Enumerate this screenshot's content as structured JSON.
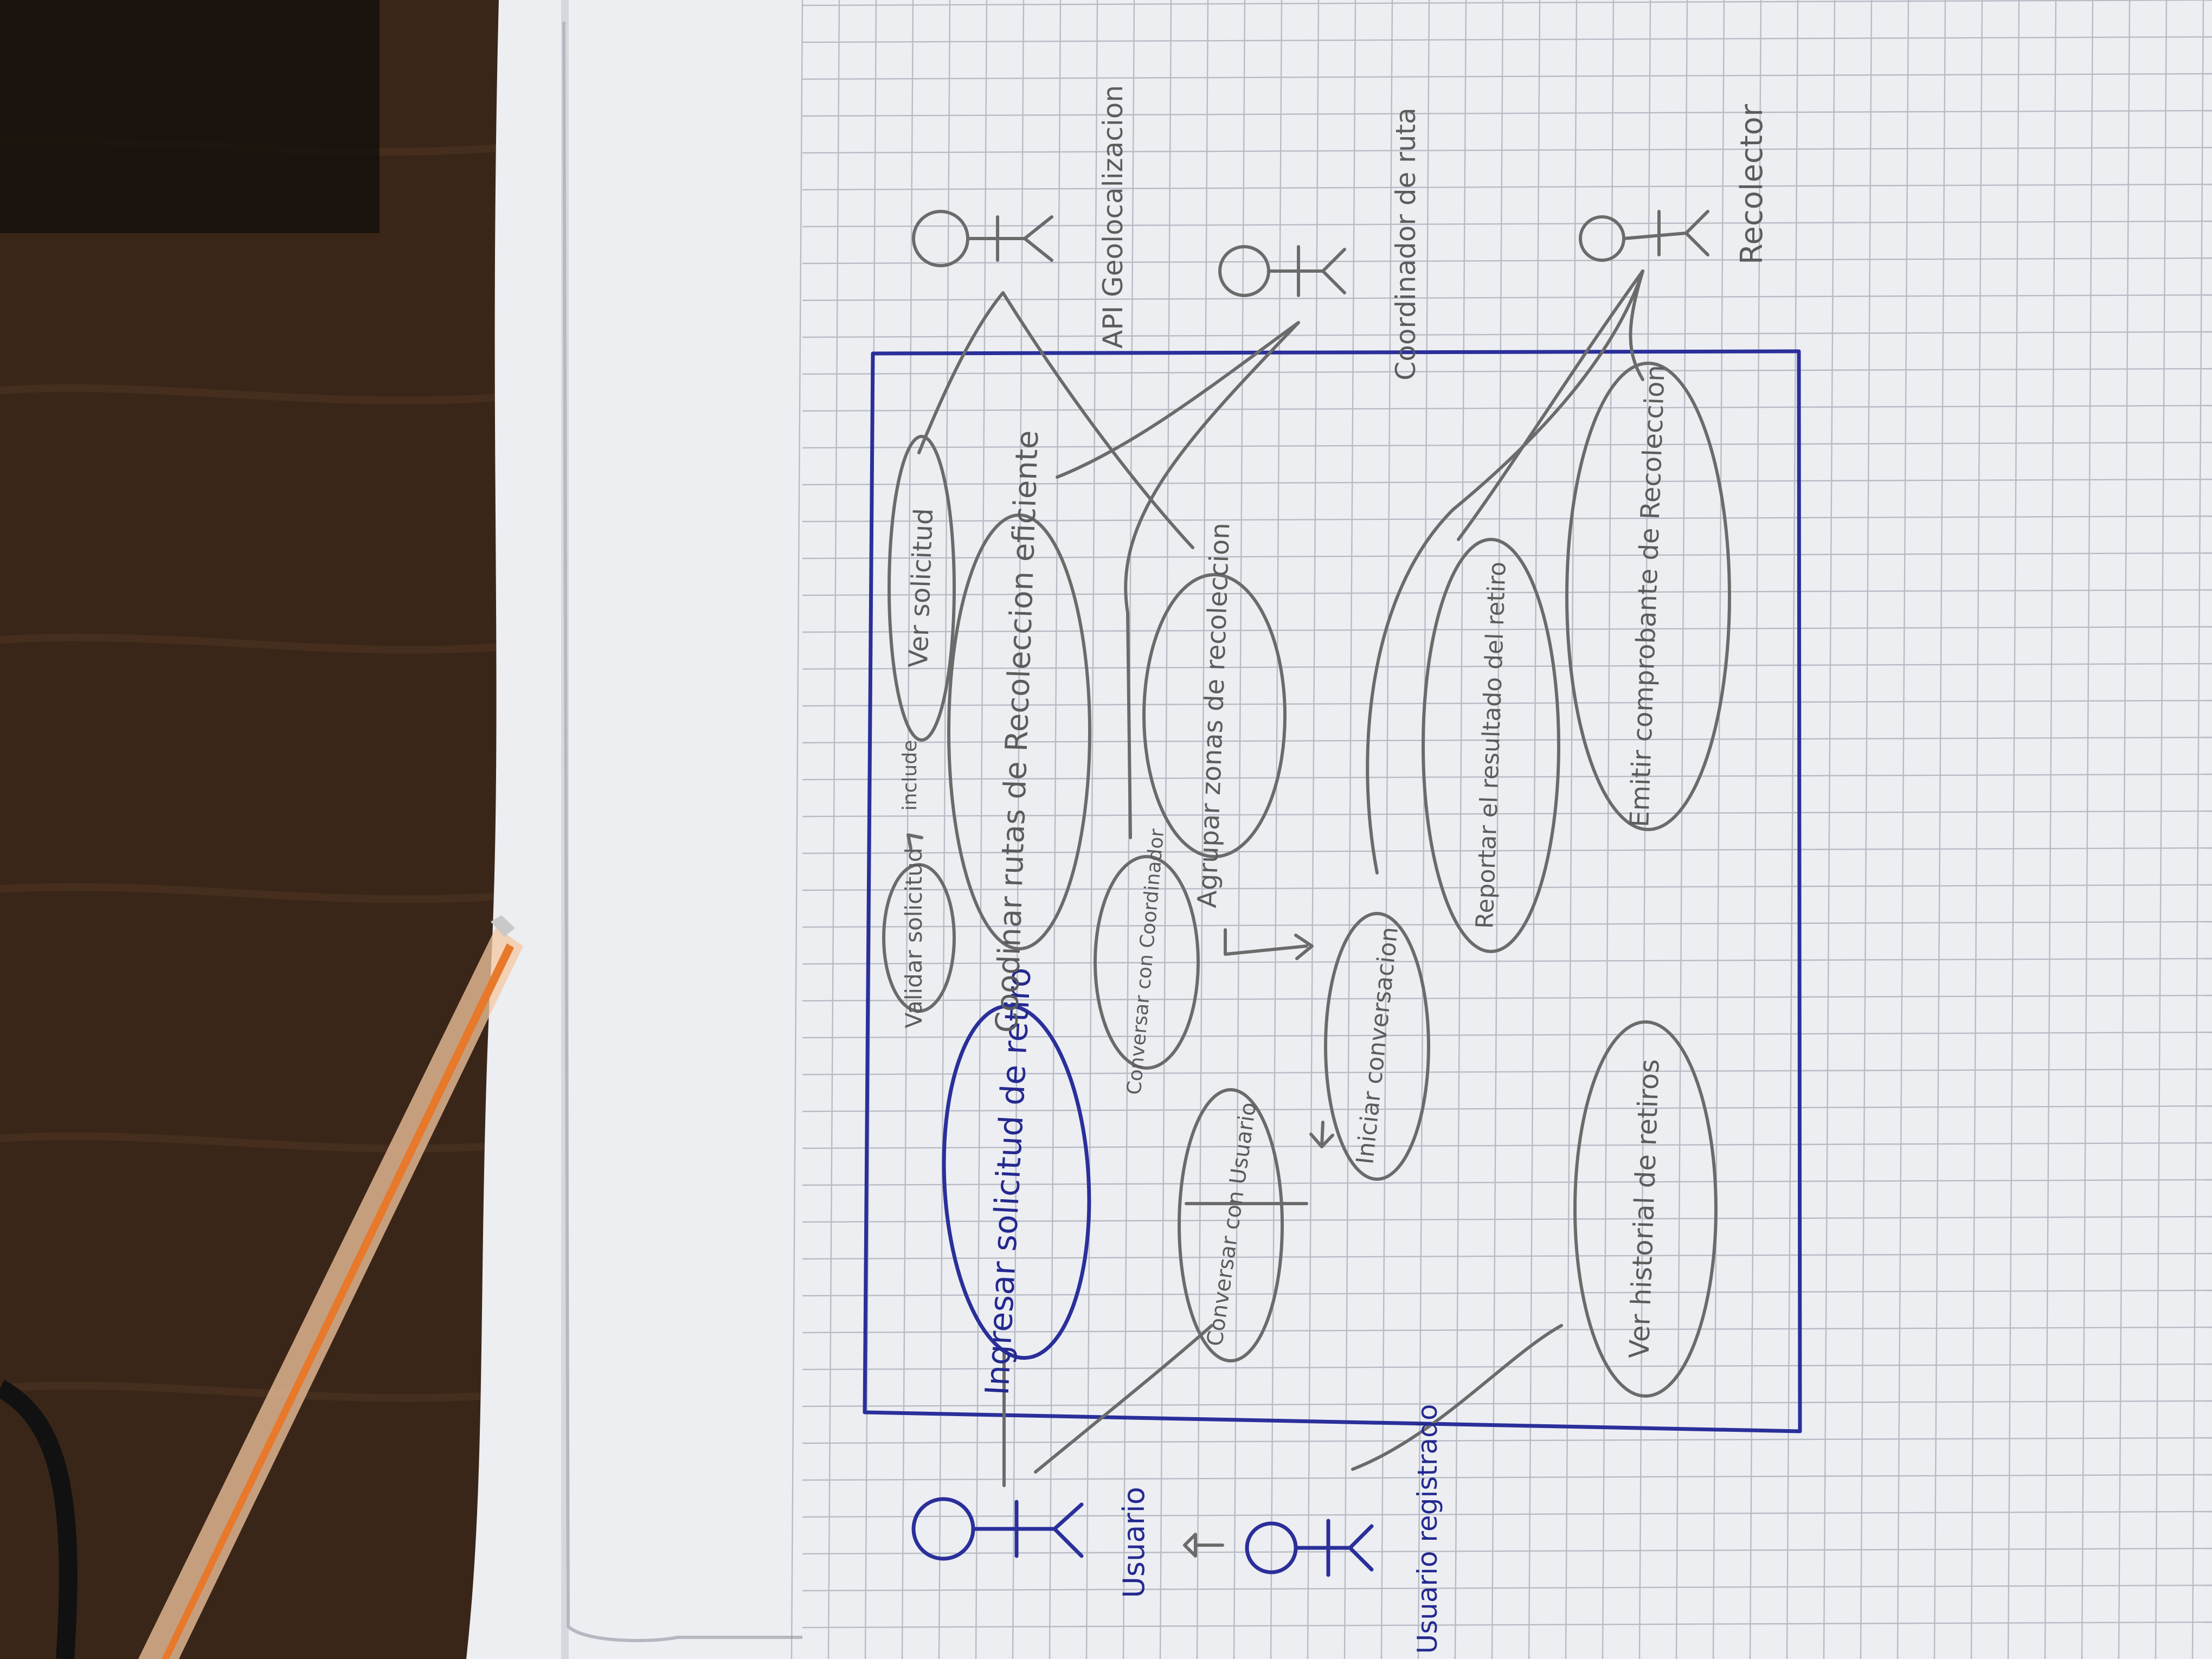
{
  "colors": {
    "desk": "#3a2618",
    "paper": "#eceef2",
    "pencil": "#6b6b6b",
    "ink": "#2a2f9a",
    "pen_barrel": "#e8782a"
  },
  "system_boundary": {
    "label": ""
  },
  "use_cases": [
    {
      "id": "ingresar",
      "text": "Ingresar solicitud de retiro",
      "color": "ink"
    },
    {
      "id": "validar",
      "text": "Validar solicitud",
      "color": "pencil"
    },
    {
      "id": "include",
      "text": "include",
      "color": "pencil"
    },
    {
      "id": "ver_solicitud",
      "text": "Ver solicitud",
      "color": "pencil"
    },
    {
      "id": "coordinar",
      "text": "Coodinar rutas de Recoleccion eficiente",
      "color": "pencil"
    },
    {
      "id": "conversar_coord",
      "text": "Conversar con Coordinador",
      "color": "pencil"
    },
    {
      "id": "agrupar",
      "text": "Agrupar zonas de recoleccion",
      "color": "pencil"
    },
    {
      "id": "conversar_usuario",
      "text": "Conversar con Usuario",
      "color": "pencil"
    },
    {
      "id": "iniciar",
      "text": "Iniciar conversacion",
      "color": "pencil"
    },
    {
      "id": "reportar",
      "text": "Reportar el resultado del retiro",
      "color": "pencil"
    },
    {
      "id": "emitir",
      "text": "Emitir comprobante de Recoleccion",
      "color": "pencil"
    },
    {
      "id": "historial",
      "text": "Ver historial de retiros",
      "color": "pencil"
    }
  ],
  "actors": [
    {
      "id": "usuario",
      "label": "Usuario",
      "color": "ink"
    },
    {
      "id": "usuario_registrado",
      "label": "Usuario registrado",
      "color": "ink"
    },
    {
      "id": "api_geo",
      "label": "API Geolocalizacion",
      "color": "pencil"
    },
    {
      "id": "coordinador",
      "label": "Coordinador de ruta",
      "color": "pencil"
    },
    {
      "id": "recolector",
      "label": "Recolector",
      "color": "pencil"
    }
  ]
}
